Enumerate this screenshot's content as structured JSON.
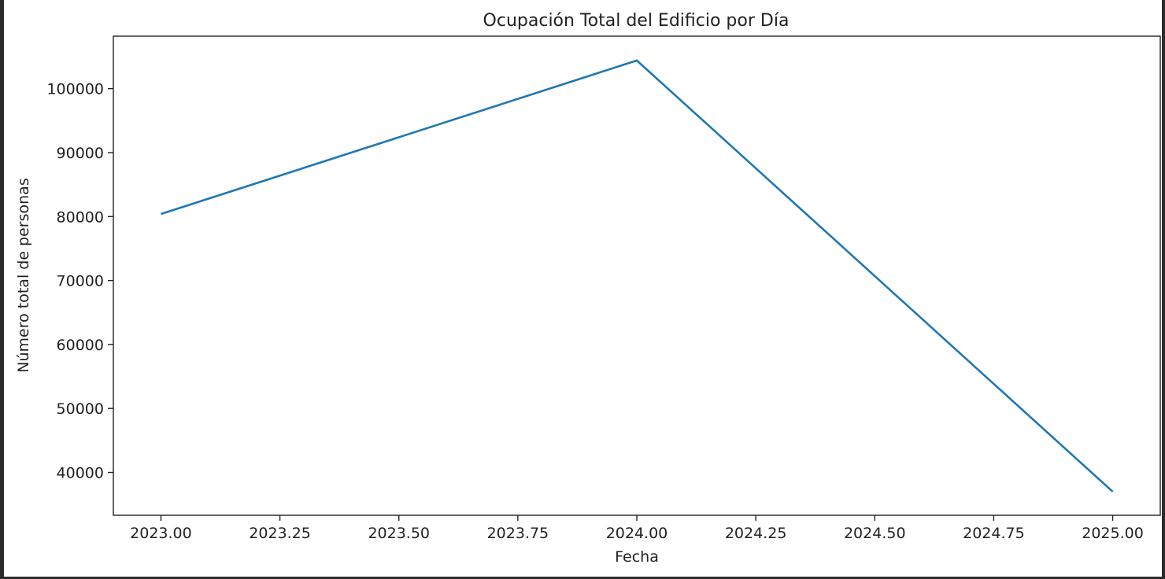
{
  "chart_data": {
    "type": "line",
    "title": "Ocupación Total del Edificio por Día",
    "xlabel": "Fecha",
    "ylabel": "Número total de personas",
    "x": [
      2023.0,
      2024.0,
      2025.0
    ],
    "y": [
      80400,
      104400,
      37000
    ],
    "xlim": [
      2022.9,
      2025.1
    ],
    "ylim": [
      33300,
      108200
    ],
    "xticks": [
      2023.0,
      2023.25,
      2023.5,
      2023.75,
      2024.0,
      2024.25,
      2024.5,
      2024.75,
      2025.0
    ],
    "xtick_labels": [
      "2023.00",
      "2023.25",
      "2023.50",
      "2023.75",
      "2024.00",
      "2024.25",
      "2024.50",
      "2024.75",
      "2025.00"
    ],
    "yticks": [
      40000,
      50000,
      60000,
      70000,
      80000,
      90000,
      100000
    ],
    "ytick_labels": [
      "40000",
      "50000",
      "60000",
      "70000",
      "80000",
      "90000",
      "100000"
    ],
    "grid": false,
    "line_color": "#1f77b4"
  }
}
